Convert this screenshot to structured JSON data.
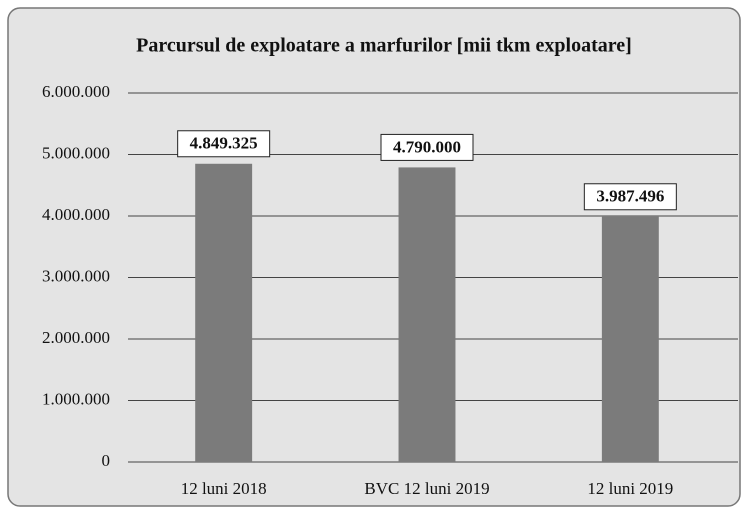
{
  "chart_data": {
    "type": "bar",
    "title": "Parcursul de exploatare a marfurilor [mii tkm exploatare]",
    "categories": [
      "12 luni 2018",
      "BVC 12 luni 2019",
      "12 luni 2019"
    ],
    "values": [
      4849325,
      4790000,
      3987496
    ],
    "value_labels": [
      "4.849.325",
      "4.790.000",
      "3.987.496"
    ],
    "color": "#7b7b7b",
    "ylim": [
      0,
      6000000
    ],
    "yticks": [
      0,
      {
        "value": 1000000,
        "label": "1.000.000"
      },
      {
        "value": 2000000,
        "label": "2.000.000"
      },
      {
        "value": 3000000,
        "label": "3.000.000"
      },
      {
        "value": 4000000,
        "label": "4.000.000"
      },
      {
        "value": 5000000,
        "label": "5.000.000"
      },
      {
        "value": 6000000,
        "label": "6.000.000"
      }
    ],
    "grid": true
  }
}
